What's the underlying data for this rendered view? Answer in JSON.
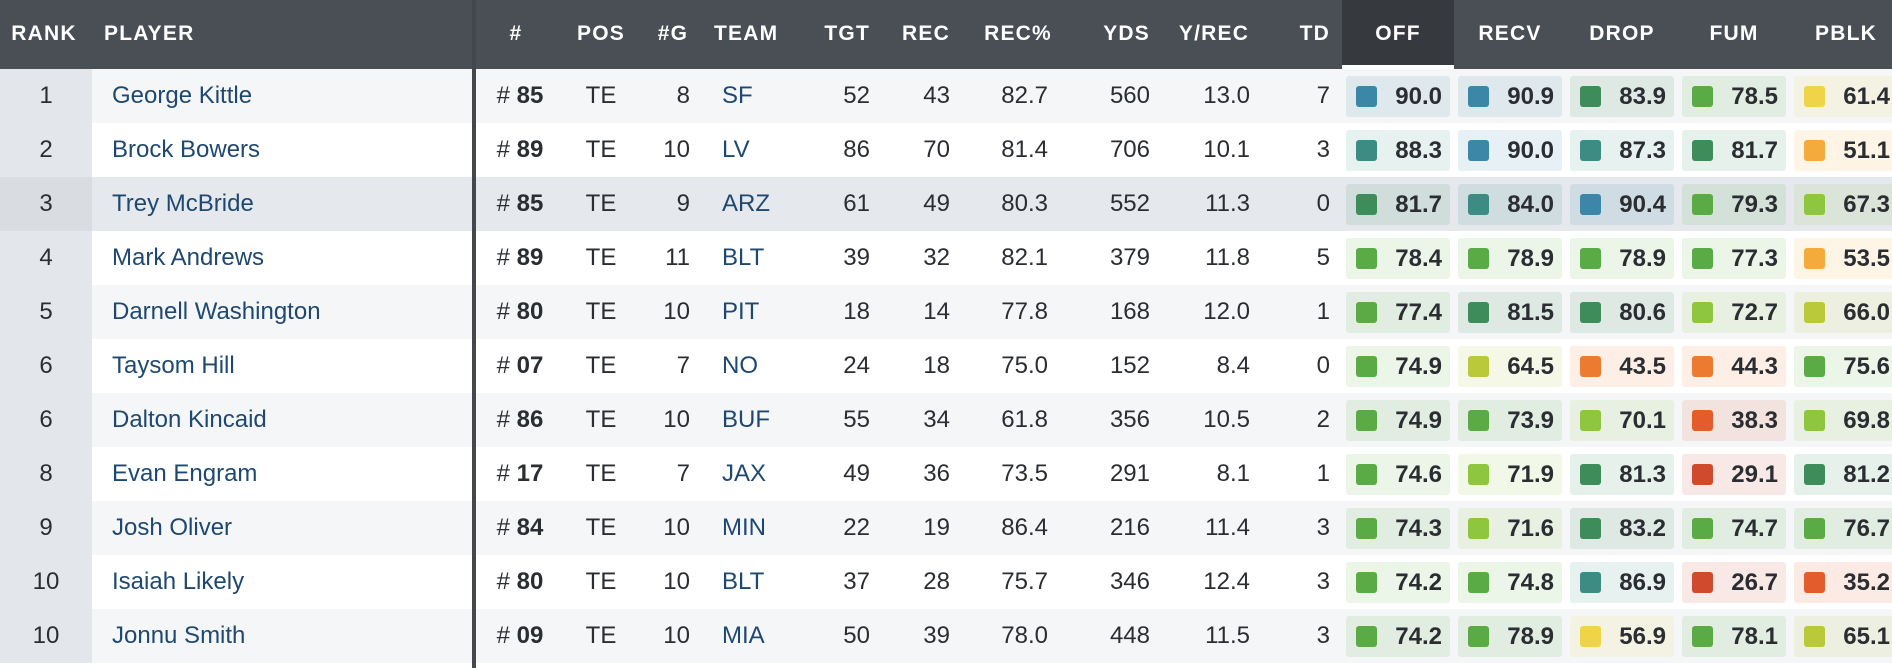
{
  "colors": {
    "header_bg": "#4a4f55",
    "active_header_bg": "#36393d",
    "player_link": "#1e4870",
    "grade_scale": {
      "blue": "#3c87a8",
      "teal": "#3d8c84",
      "dark_green": "#3d8c5a",
      "green": "#5aaa45",
      "light_green": "#8ec63f",
      "yellow_green": "#b9c93a",
      "yellow": "#f0d447",
      "light_orange": "#f5aa3c",
      "orange": "#ec7a31",
      "red_orange": "#e35d2c",
      "red": "#d04a2e"
    }
  },
  "headers": {
    "rank": "RANK",
    "player": "PLAYER",
    "jersey": "#",
    "pos": "POS",
    "games": "#G",
    "team": "TEAM",
    "tgt": "TGT",
    "rec": "REC",
    "rec_pct": "REC%",
    "yds": "YDS",
    "y_rec": "Y/REC",
    "td": "TD",
    "off": "OFF",
    "recv": "RECV",
    "drop": "DROP",
    "fum": "FUM",
    "pblk": "PBLK"
  },
  "active_sort_column": "OFF",
  "jersey_prefix": "#",
  "rows": [
    {
      "rank": "1",
      "player": "George Kittle",
      "jersey": "85",
      "pos": "TE",
      "games": "8",
      "team": "SF",
      "tgt": "52",
      "rec": "43",
      "rec_pct": "82.7",
      "yds": "560",
      "y_rec": "13.0",
      "td": "7",
      "grades": [
        {
          "value": "90.0",
          "color": "#3c87a8"
        },
        {
          "value": "90.9",
          "color": "#3c87a8"
        },
        {
          "value": "83.9",
          "color": "#3d8c5a"
        },
        {
          "value": "78.5",
          "color": "#5aaa45"
        },
        {
          "value": "61.4",
          "color": "#f0d447"
        }
      ]
    },
    {
      "rank": "2",
      "player": "Brock Bowers",
      "jersey": "89",
      "pos": "TE",
      "games": "10",
      "team": "LV",
      "tgt": "86",
      "rec": "70",
      "rec_pct": "81.4",
      "yds": "706",
      "y_rec": "10.1",
      "td": "3",
      "grades": [
        {
          "value": "88.3",
          "color": "#3d8c84"
        },
        {
          "value": "90.0",
          "color": "#3c87a8"
        },
        {
          "value": "87.3",
          "color": "#3d8c84"
        },
        {
          "value": "81.7",
          "color": "#3d8c5a"
        },
        {
          "value": "51.1",
          "color": "#f5aa3c"
        }
      ]
    },
    {
      "rank": "3",
      "player": "Trey McBride",
      "jersey": "85",
      "pos": "TE",
      "games": "9",
      "team": "ARZ",
      "tgt": "61",
      "rec": "49",
      "rec_pct": "80.3",
      "yds": "552",
      "y_rec": "11.3",
      "td": "0",
      "grades": [
        {
          "value": "81.7",
          "color": "#3d8c5a"
        },
        {
          "value": "84.0",
          "color": "#3d8c84"
        },
        {
          "value": "90.4",
          "color": "#3c87a8"
        },
        {
          "value": "79.3",
          "color": "#5aaa45"
        },
        {
          "value": "67.3",
          "color": "#8ec63f"
        }
      ]
    },
    {
      "rank": "4",
      "player": "Mark Andrews",
      "jersey": "89",
      "pos": "TE",
      "games": "11",
      "team": "BLT",
      "tgt": "39",
      "rec": "32",
      "rec_pct": "82.1",
      "yds": "379",
      "y_rec": "11.8",
      "td": "5",
      "grades": [
        {
          "value": "78.4",
          "color": "#5aaa45"
        },
        {
          "value": "78.9",
          "color": "#5aaa45"
        },
        {
          "value": "78.9",
          "color": "#5aaa45"
        },
        {
          "value": "77.3",
          "color": "#5aaa45"
        },
        {
          "value": "53.5",
          "color": "#f5aa3c"
        }
      ]
    },
    {
      "rank": "5",
      "player": "Darnell Washington",
      "jersey": "80",
      "pos": "TE",
      "games": "10",
      "team": "PIT",
      "tgt": "18",
      "rec": "14",
      "rec_pct": "77.8",
      "yds": "168",
      "y_rec": "12.0",
      "td": "1",
      "grades": [
        {
          "value": "77.4",
          "color": "#5aaa45"
        },
        {
          "value": "81.5",
          "color": "#3d8c5a"
        },
        {
          "value": "80.6",
          "color": "#3d8c5a"
        },
        {
          "value": "72.7",
          "color": "#8ec63f"
        },
        {
          "value": "66.0",
          "color": "#b9c93a"
        }
      ]
    },
    {
      "rank": "6",
      "player": "Taysom Hill",
      "jersey": "07",
      "pos": "TE",
      "games": "7",
      "team": "NO",
      "tgt": "24",
      "rec": "18",
      "rec_pct": "75.0",
      "yds": "152",
      "y_rec": "8.4",
      "td": "0",
      "grades": [
        {
          "value": "74.9",
          "color": "#5aaa45"
        },
        {
          "value": "64.5",
          "color": "#b9c93a"
        },
        {
          "value": "43.5",
          "color": "#ec7a31"
        },
        {
          "value": "44.3",
          "color": "#ec7a31"
        },
        {
          "value": "75.6",
          "color": "#5aaa45"
        }
      ]
    },
    {
      "rank": "6",
      "player": "Dalton Kincaid",
      "jersey": "86",
      "pos": "TE",
      "games": "10",
      "team": "BUF",
      "tgt": "55",
      "rec": "34",
      "rec_pct": "61.8",
      "yds": "356",
      "y_rec": "10.5",
      "td": "2",
      "grades": [
        {
          "value": "74.9",
          "color": "#5aaa45"
        },
        {
          "value": "73.9",
          "color": "#5aaa45"
        },
        {
          "value": "70.1",
          "color": "#8ec63f"
        },
        {
          "value": "38.3",
          "color": "#e35d2c"
        },
        {
          "value": "69.8",
          "color": "#8ec63f"
        }
      ]
    },
    {
      "rank": "8",
      "player": "Evan Engram",
      "jersey": "17",
      "pos": "TE",
      "games": "7",
      "team": "JAX",
      "tgt": "49",
      "rec": "36",
      "rec_pct": "73.5",
      "yds": "291",
      "y_rec": "8.1",
      "td": "1",
      "grades": [
        {
          "value": "74.6",
          "color": "#5aaa45"
        },
        {
          "value": "71.9",
          "color": "#8ec63f"
        },
        {
          "value": "81.3",
          "color": "#3d8c5a"
        },
        {
          "value": "29.1",
          "color": "#d04a2e"
        },
        {
          "value": "81.2",
          "color": "#3d8c5a"
        }
      ]
    },
    {
      "rank": "9",
      "player": "Josh Oliver",
      "jersey": "84",
      "pos": "TE",
      "games": "10",
      "team": "MIN",
      "tgt": "22",
      "rec": "19",
      "rec_pct": "86.4",
      "yds": "216",
      "y_rec": "11.4",
      "td": "3",
      "grades": [
        {
          "value": "74.3",
          "color": "#5aaa45"
        },
        {
          "value": "71.6",
          "color": "#8ec63f"
        },
        {
          "value": "83.2",
          "color": "#3d8c5a"
        },
        {
          "value": "74.7",
          "color": "#5aaa45"
        },
        {
          "value": "76.7",
          "color": "#5aaa45"
        }
      ]
    },
    {
      "rank": "10",
      "player": "Isaiah Likely",
      "jersey": "80",
      "pos": "TE",
      "games": "10",
      "team": "BLT",
      "tgt": "37",
      "rec": "28",
      "rec_pct": "75.7",
      "yds": "346",
      "y_rec": "12.4",
      "td": "3",
      "grades": [
        {
          "value": "74.2",
          "color": "#5aaa45"
        },
        {
          "value": "74.8",
          "color": "#5aaa45"
        },
        {
          "value": "86.9",
          "color": "#3d8c84"
        },
        {
          "value": "26.7",
          "color": "#d04a2e"
        },
        {
          "value": "35.2",
          "color": "#e35d2c"
        }
      ]
    },
    {
      "rank": "10",
      "player": "Jonnu Smith",
      "jersey": "09",
      "pos": "TE",
      "games": "10",
      "team": "MIA",
      "tgt": "50",
      "rec": "39",
      "rec_pct": "78.0",
      "yds": "448",
      "y_rec": "11.5",
      "td": "3",
      "grades": [
        {
          "value": "74.2",
          "color": "#5aaa45"
        },
        {
          "value": "78.9",
          "color": "#5aaa45"
        },
        {
          "value": "56.9",
          "color": "#f0d447"
        },
        {
          "value": "78.1",
          "color": "#5aaa45"
        },
        {
          "value": "65.1",
          "color": "#b9c93a"
        }
      ]
    }
  ]
}
